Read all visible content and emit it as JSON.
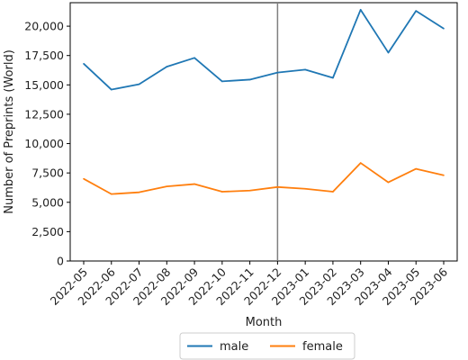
{
  "chart_data": {
    "type": "line",
    "xlabel": "Month",
    "ylabel": "Number of Preprints (World)",
    "categories": [
      "2022-05",
      "2022-06",
      "2022-07",
      "2022-08",
      "2022-09",
      "2022-10",
      "2022-11",
      "2022-12",
      "2023-01",
      "2023-02",
      "2023-03",
      "2023-04",
      "2023-05",
      "2023-06"
    ],
    "yticks": [
      0,
      2500,
      5000,
      7500,
      10000,
      12500,
      15000,
      17500,
      20000
    ],
    "ytick_labels": [
      "0",
      "2,500",
      "5,000",
      "7,500",
      "10,000",
      "12,500",
      "15,000",
      "17,500",
      "20,000"
    ],
    "ylim": [
      0,
      22000
    ],
    "vertical_marker": "2022-12",
    "legend_position": "bottom-center",
    "grid": false,
    "series": [
      {
        "name": "male",
        "color": "#1f77b4",
        "values": [
          16800,
          14600,
          15050,
          16550,
          17300,
          15300,
          15450,
          16050,
          16300,
          15600,
          21400,
          17750,
          21300,
          19800
        ]
      },
      {
        "name": "female",
        "color": "#ff7f0e",
        "values": [
          7000,
          5700,
          5850,
          6350,
          6550,
          5900,
          6000,
          6300,
          6150,
          5900,
          8350,
          6700,
          7850,
          7300
        ]
      }
    ]
  }
}
